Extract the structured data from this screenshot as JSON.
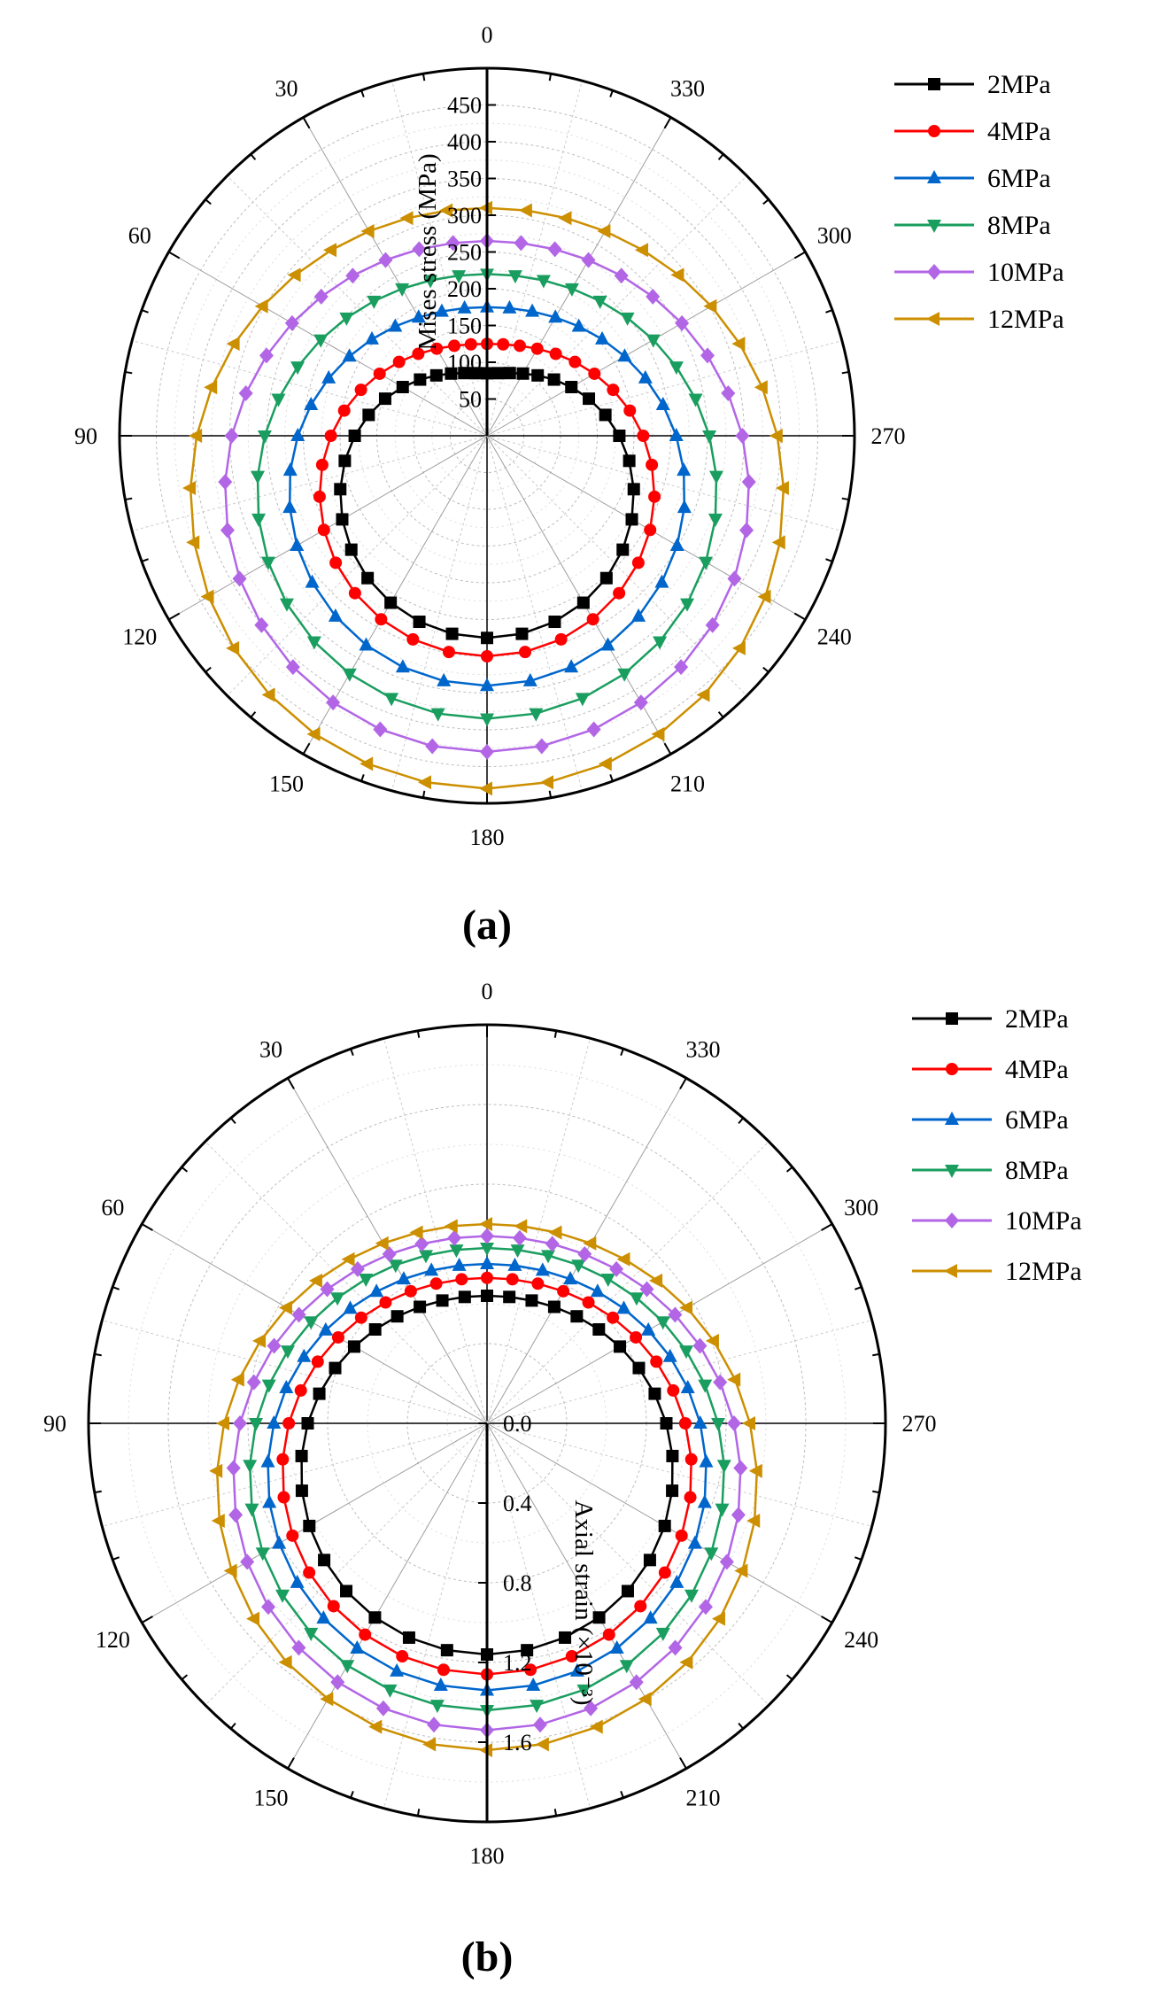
{
  "chart_data": [
    {
      "panel": "(a)",
      "type": "polar-line",
      "radial_title": "Mises stress (MPa)",
      "radial_range": [
        0,
        500
      ],
      "radial_axis_angle": 0,
      "radial_ticks": [
        "50",
        "100",
        "150",
        "200",
        "250",
        "300",
        "350",
        "400",
        "450"
      ],
      "radial_tick_values": [
        50,
        100,
        150,
        200,
        250,
        300,
        350,
        400,
        450
      ],
      "angle_ticks": [
        "0",
        "30",
        "60",
        "90",
        "120",
        "150",
        "180",
        "210",
        "240",
        "270",
        "300",
        "330"
      ],
      "angle_tick_values": [
        0,
        30,
        60,
        90,
        120,
        150,
        180,
        210,
        240,
        270,
        300,
        330
      ],
      "angle_direction": "counterclockwise, 0 at top",
      "point_spacing_deg": 10,
      "legend_position": "top-right",
      "series": [
        {
          "name": "2MPa",
          "marker": "square",
          "base": 85,
          "bottom": 275,
          "color": "#000000"
        },
        {
          "name": "4MPa",
          "marker": "circle",
          "base": 125,
          "bottom": 300,
          "color": "#ff0000"
        },
        {
          "name": "6MPa",
          "marker": "triangle-up",
          "base": 175,
          "bottom": 340,
          "color": "#0066cc"
        },
        {
          "name": "8MPa",
          "marker": "triangle-down",
          "base": 220,
          "bottom": 385,
          "color": "#1a9e5f"
        },
        {
          "name": "10MPa",
          "marker": "diamond",
          "base": 265,
          "bottom": 430,
          "color": "#b266e6"
        },
        {
          "name": "12MPa",
          "marker": "triangle-left",
          "base": 310,
          "bottom": 480,
          "color": "#cc8f00"
        }
      ]
    },
    {
      "panel": "(b)",
      "type": "polar-line",
      "radial_title": "Axial strain (×10⁻³)",
      "radial_range": [
        0,
        2.0
      ],
      "radial_axis_angle": 180,
      "radial_ticks": [
        "0.0",
        "0.4",
        "0.8",
        "1.2",
        "1.6"
      ],
      "radial_tick_values": [
        0.0,
        0.4,
        0.8,
        1.2,
        1.6
      ],
      "angle_ticks": [
        "0",
        "30",
        "60",
        "90",
        "120",
        "150",
        "180",
        "210",
        "240",
        "270",
        "300",
        "330"
      ],
      "angle_tick_values": [
        0,
        30,
        60,
        90,
        120,
        150,
        180,
        210,
        240,
        270,
        300,
        330
      ],
      "angle_direction": "counterclockwise, 0 at top",
      "point_spacing_deg": 10,
      "legend_position": "top-right",
      "series": [
        {
          "name": "2MPa",
          "marker": "square",
          "base": 0.64,
          "bottom": 1.16,
          "color": "#000000"
        },
        {
          "name": "4MPa",
          "marker": "circle",
          "base": 0.73,
          "bottom": 1.26,
          "color": "#ff0000"
        },
        {
          "name": "6MPa",
          "marker": "triangle-up",
          "base": 0.8,
          "bottom": 1.34,
          "color": "#0066cc"
        },
        {
          "name": "8MPa",
          "marker": "triangle-down",
          "base": 0.88,
          "bottom": 1.44,
          "color": "#1a9e5f"
        },
        {
          "name": "10MPa",
          "marker": "diamond",
          "base": 0.94,
          "bottom": 1.54,
          "color": "#b266e6"
        },
        {
          "name": "12MPa",
          "marker": "triangle-left",
          "base": 1.0,
          "bottom": 1.64,
          "color": "#cc8f00"
        }
      ]
    }
  ]
}
